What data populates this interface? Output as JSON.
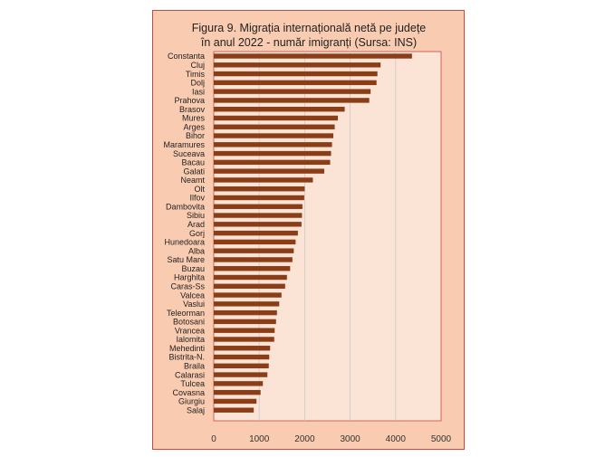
{
  "chart_data": {
    "type": "bar",
    "orientation": "horizontal",
    "title_lines": [
      "Figura 9. Migrația internațională netă pe județe",
      "în anul 2022 - număr imigranți (Sursa: INS)"
    ],
    "categories": [
      "Constanta",
      "Cluj",
      "Timis",
      "Dolj",
      "Iasi",
      "Prahova",
      "Brasov",
      "Mures",
      "Arges",
      "Bihor",
      "Maramures",
      "Suceava",
      "Bacau",
      "Galati",
      "Neamt",
      "Olt",
      "Ilfov",
      "Dambovita",
      "Sibiu",
      "Arad",
      "Gorj",
      "Hunedoara",
      "Alba",
      "Satu Mare",
      "Buzau",
      "Harghita",
      "Caras-Ss",
      "Valcea",
      "Vaslui",
      "Teleorman",
      "Botosani",
      "Vrancea",
      "Ialomita",
      "Mehedinti",
      "Bistrita-N.",
      "Braila",
      "Calarasi",
      "Tulcea",
      "Covasna",
      "Giurgiu",
      "Salaj"
    ],
    "values": [
      4360,
      3670,
      3600,
      3580,
      3450,
      3420,
      2880,
      2730,
      2660,
      2630,
      2600,
      2580,
      2560,
      2430,
      2180,
      2000,
      1990,
      1950,
      1940,
      1930,
      1850,
      1800,
      1760,
      1730,
      1680,
      1610,
      1570,
      1490,
      1440,
      1390,
      1370,
      1340,
      1330,
      1240,
      1220,
      1210,
      1180,
      1080,
      1030,
      940,
      880
    ],
    "xlim": [
      0,
      5000
    ],
    "xticks": [
      "0",
      "1000",
      "2000",
      "3000",
      "4000",
      "5000"
    ],
    "grid": true,
    "legend": "none",
    "colors": {
      "bar": "#8b3d17",
      "plot_background": "#fbe4d6",
      "chart_background": "#f9cbb0",
      "border": "#c8473f",
      "gridline": "#c9c9c9"
    }
  }
}
